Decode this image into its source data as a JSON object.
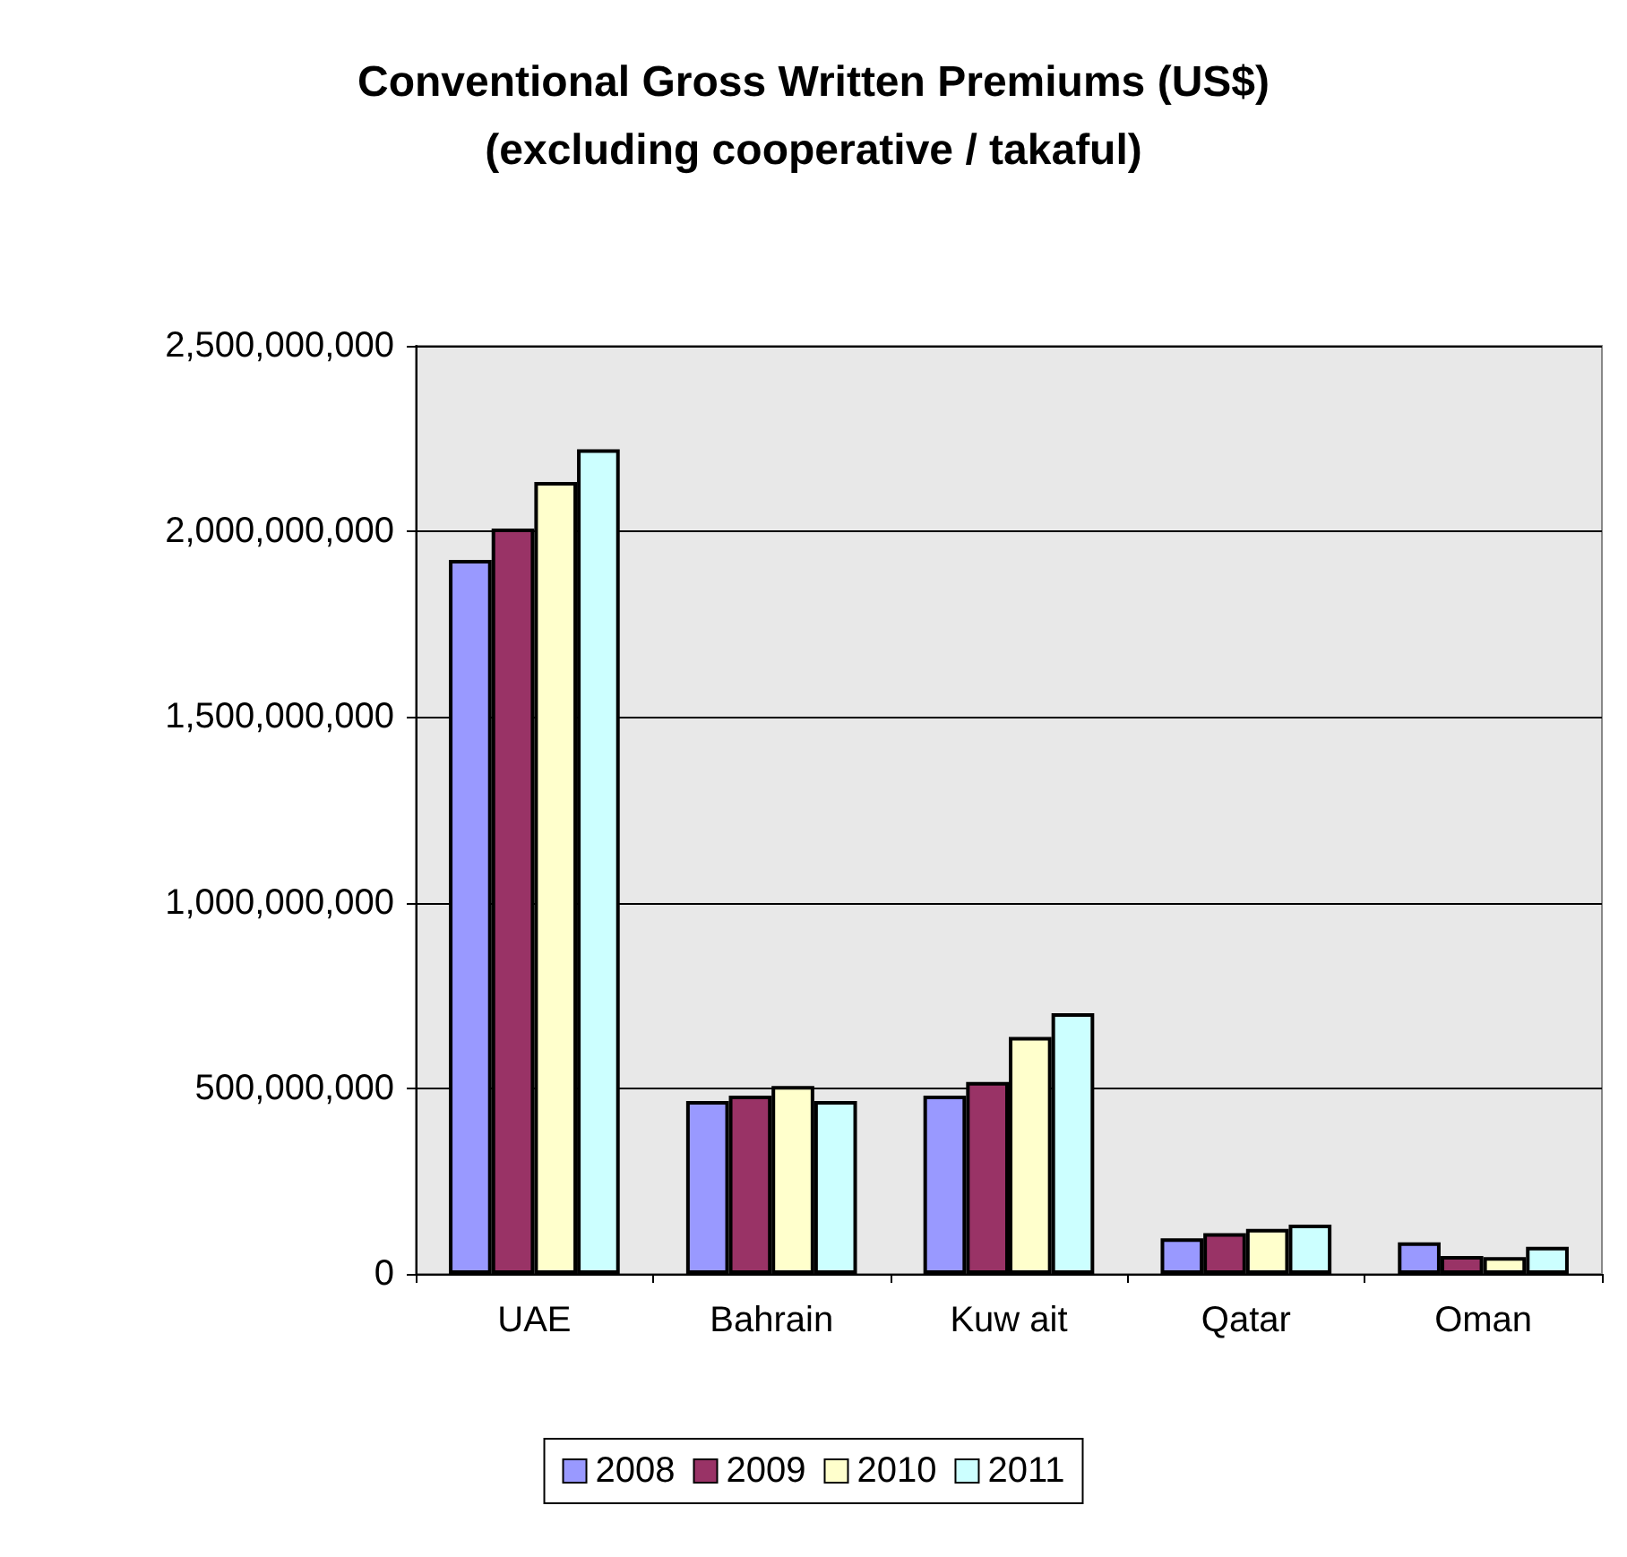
{
  "chart_data": {
    "type": "bar",
    "title": "Conventional Gross Written Premiums (US$)\n(excluding cooperative / takaful)",
    "categories": [
      "UAE",
      "Bahrain",
      "Kuw ait",
      "Qatar",
      "Oman"
    ],
    "series": [
      {
        "name": "2008",
        "color": "#9999ff",
        "values": [
          1923000000,
          466000000,
          480000000,
          96000000,
          85000000
        ]
      },
      {
        "name": "2009",
        "color": "#993366",
        "values": [
          2008000000,
          480000000,
          517000000,
          110000000,
          48000000
        ]
      },
      {
        "name": "2010",
        "color": "#ffffcc",
        "values": [
          2133000000,
          506000000,
          638000000,
          121000000,
          45000000
        ]
      },
      {
        "name": "2011",
        "color": "#ccffff",
        "values": [
          2221000000,
          466000000,
          702000000,
          133000000,
          73000000
        ]
      }
    ],
    "ylim": [
      0,
      2500000000
    ],
    "yticks": [
      0,
      {
        "value": 500000000,
        "label": "500,000,000"
      },
      {
        "value": 1000000000,
        "label": "1,000,000,000"
      },
      {
        "value": 1500000000,
        "label": "1,500,000,000"
      },
      {
        "value": 2000000000,
        "label": "2,000,000,000"
      },
      {
        "value": 2500000000,
        "label": "2,500,000,000"
      }
    ],
    "grid": "y",
    "legend": "bottom"
  }
}
